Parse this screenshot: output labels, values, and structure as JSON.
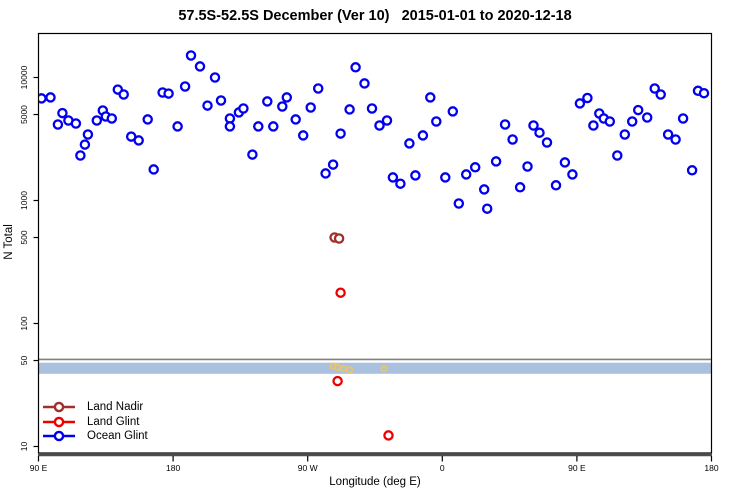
{
  "title": "57.5S-52.5S December (Ver 10)   2015-01-01 to 2020-12-18",
  "axes": {
    "x": {
      "label": "Longitude (deg E)",
      "tick_labels": [
        "90 E",
        "180",
        "90 W",
        "0",
        "90 E",
        "180"
      ],
      "tick_lons": [
        90,
        180,
        270,
        360,
        450,
        540
      ]
    },
    "y": {
      "label": "N Total",
      "scale": "log",
      "tick_values": [
        10000,
        5000,
        1000,
        500,
        100,
        50,
        10
      ],
      "tick_labels": [
        "10000",
        "5000",
        "1000",
        "500",
        "100",
        "50",
        "10"
      ]
    }
  },
  "legend": {
    "items": [
      {
        "label": "Land Nadir",
        "color": "#A0302A"
      },
      {
        "label": "Land Glint",
        "color": "#EE0000"
      },
      {
        "label": "Ocean Glint",
        "color": "#0000EE"
      }
    ]
  },
  "annotations": {
    "reference_line": {
      "n": 51,
      "color": "#808080"
    },
    "band": {
      "n_min": 39,
      "n_max": 48,
      "color": "#A9C1DE"
    },
    "band_marks": {
      "color": "#E9C express46A",
      "points_lon_n": [
        [
          287,
          45
        ],
        [
          290,
          44
        ],
        [
          294,
          43
        ],
        [
          298,
          42
        ],
        [
          321,
          43
        ]
      ]
    }
  },
  "chart_data": {
    "type": "scatter",
    "title": "57.5S-52.5S December (Ver 10)   2015-01-01 to 2020-12-18",
    "xlabel": "Longitude (deg E)",
    "ylabel": "N Total",
    "x_note": "longitude wraps eastward from 90E: ticks 90E,180,90W,0,90E,180 stored as 90-540 continuous deg E",
    "y_note": "log10 scale",
    "xlim": [
      90,
      540
    ],
    "ylim": [
      8.8,
      22600
    ],
    "grid": false,
    "legend_position": "bottom-left-inside",
    "series": [
      {
        "name": "Land Nadir",
        "color": "#A0302A",
        "marker": "open-circle",
        "points": [
          [
            288,
            500
          ],
          [
            291,
            491
          ]
        ]
      },
      {
        "name": "Land Glint",
        "color": "#EE0000",
        "marker": "open-circle",
        "points": [
          [
            292,
            178
          ],
          [
            290,
            34
          ],
          [
            324,
            12.3
          ]
        ]
      },
      {
        "name": "Ocean Glint",
        "color": "#0000EE",
        "marker": "open-circle",
        "points": [
          [
            92,
            6760
          ],
          [
            98,
            6890
          ],
          [
            103,
            4150
          ],
          [
            106,
            5140
          ],
          [
            110,
            4470
          ],
          [
            115,
            4230
          ],
          [
            123,
            3440
          ],
          [
            121,
            2850
          ],
          [
            118,
            2320
          ],
          [
            129,
            4470
          ],
          [
            133,
            5390
          ],
          [
            135,
            4820
          ],
          [
            139,
            4640
          ],
          [
            143,
            7980
          ],
          [
            147,
            7280
          ],
          [
            152,
            3310
          ],
          [
            157,
            3080
          ],
          [
            163,
            4560
          ],
          [
            167,
            1790
          ],
          [
            173,
            7550
          ],
          [
            177,
            7400
          ],
          [
            183,
            4000
          ],
          [
            188,
            8450
          ],
          [
            192,
            15100
          ],
          [
            198,
            12300
          ],
          [
            208,
            10000
          ],
          [
            203,
            5910
          ],
          [
            212,
            6500
          ],
          [
            218,
            4640
          ],
          [
            218,
            4000
          ],
          [
            224,
            5200
          ],
          [
            227,
            5600
          ],
          [
            233,
            2360
          ],
          [
            237,
            4000
          ],
          [
            243,
            6390
          ],
          [
            247,
            4000
          ],
          [
            253,
            5810
          ],
          [
            256,
            6890
          ],
          [
            262,
            4560
          ],
          [
            267,
            3380
          ],
          [
            272,
            5700
          ],
          [
            277,
            8140
          ],
          [
            282,
            1660
          ],
          [
            287,
            1960
          ],
          [
            292,
            3500
          ],
          [
            298,
            5500
          ],
          [
            302,
            12100
          ],
          [
            308,
            8950
          ],
          [
            313,
            5600
          ],
          [
            318,
            4070
          ],
          [
            323,
            4470
          ],
          [
            327,
            1540
          ],
          [
            332,
            1370
          ],
          [
            338,
            2910
          ],
          [
            342,
            1600
          ],
          [
            347,
            3380
          ],
          [
            352,
            6890
          ],
          [
            356,
            4390
          ],
          [
            362,
            1540
          ],
          [
            367,
            5300
          ],
          [
            371,
            945
          ],
          [
            376,
            1630
          ],
          [
            382,
            1860
          ],
          [
            388,
            1230
          ],
          [
            390,
            857
          ],
          [
            396,
            2080
          ],
          [
            402,
            4150
          ],
          [
            407,
            3130
          ],
          [
            412,
            1280
          ],
          [
            417,
            1890
          ],
          [
            421,
            4070
          ],
          [
            425,
            3560
          ],
          [
            430,
            2960
          ],
          [
            436,
            1330
          ],
          [
            442,
            2040
          ],
          [
            447,
            1630
          ],
          [
            452,
            6160
          ],
          [
            457,
            6810
          ],
          [
            461,
            4070
          ],
          [
            465,
            5100
          ],
          [
            468,
            4640
          ],
          [
            472,
            4390
          ],
          [
            477,
            2320
          ],
          [
            482,
            3440
          ],
          [
            487,
            4390
          ],
          [
            491,
            5430
          ],
          [
            497,
            4730
          ],
          [
            502,
            8140
          ],
          [
            506,
            7280
          ],
          [
            511,
            3440
          ],
          [
            516,
            3130
          ],
          [
            521,
            4640
          ],
          [
            527,
            1760
          ],
          [
            531,
            7800
          ],
          [
            535,
            7450
          ]
        ]
      }
    ]
  }
}
